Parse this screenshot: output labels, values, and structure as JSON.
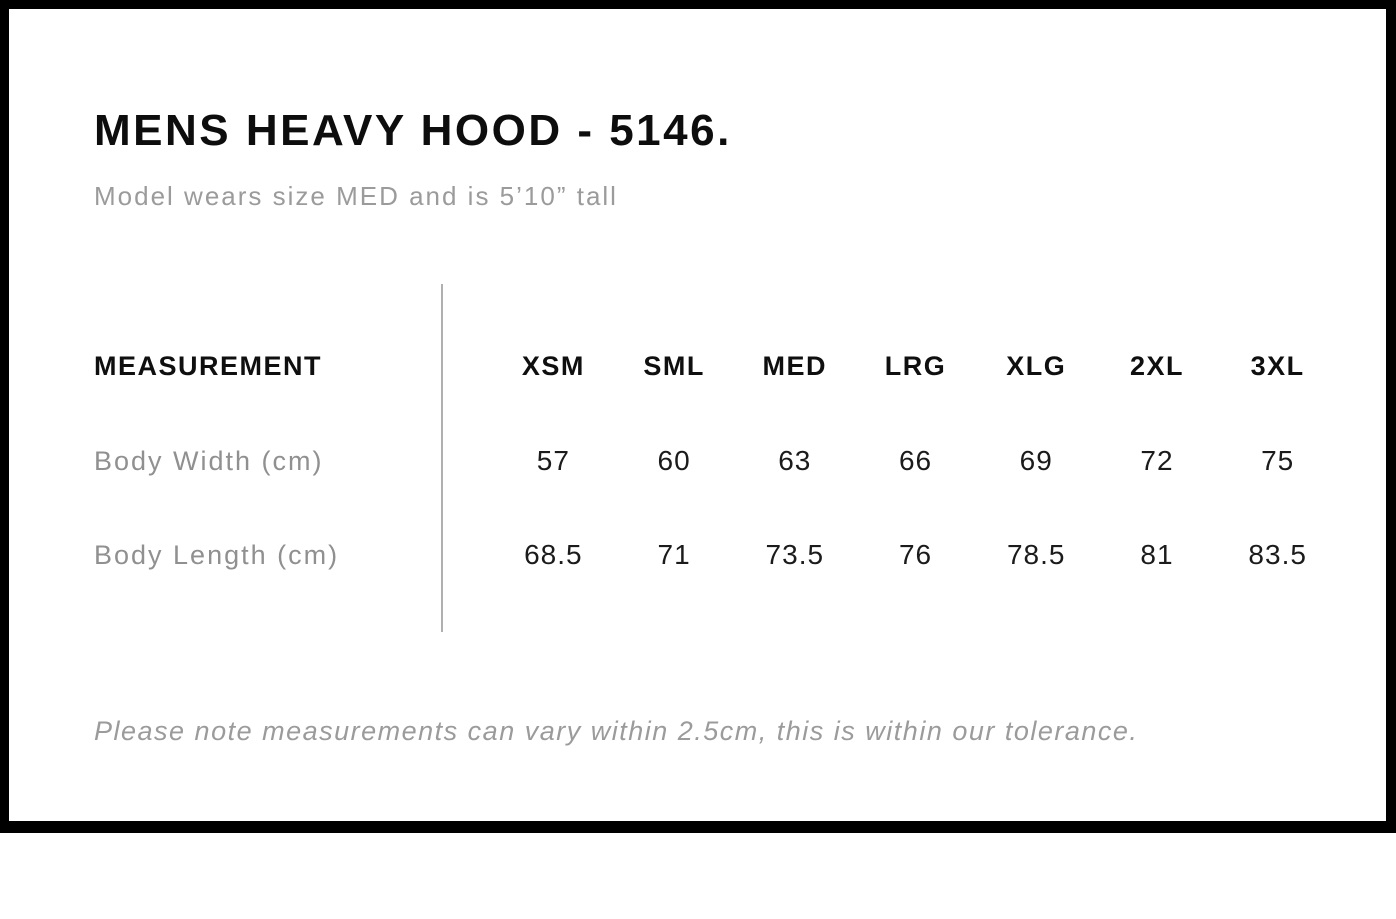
{
  "page": {
    "title": "MENS HEAVY HOOD - 5146.",
    "subtitle": "Model wears size MED and is 5’10” tall",
    "note": "Please note measurements can vary within 2.5cm, this is within our tolerance."
  },
  "size_chart": {
    "header_label": "MEASUREMENT",
    "sizes": [
      "XSM",
      "SML",
      "MED",
      "LRG",
      "XLG",
      "2XL",
      "3XL"
    ],
    "rows": [
      {
        "label": "Body Width (cm)",
        "values": [
          "57",
          "60",
          "63",
          "66",
          "69",
          "72",
          "75"
        ]
      },
      {
        "label": "Body Length (cm)",
        "values": [
          "68.5",
          "71",
          "73.5",
          "76",
          "78.5",
          "81",
          "83.5"
        ]
      }
    ]
  },
  "colors": {
    "frame_border": "#000000",
    "heading_text": "#0d0d0d",
    "muted_text": "#9b9b9b",
    "value_text": "#1b1b1b",
    "divider": "#b0b0b0"
  }
}
